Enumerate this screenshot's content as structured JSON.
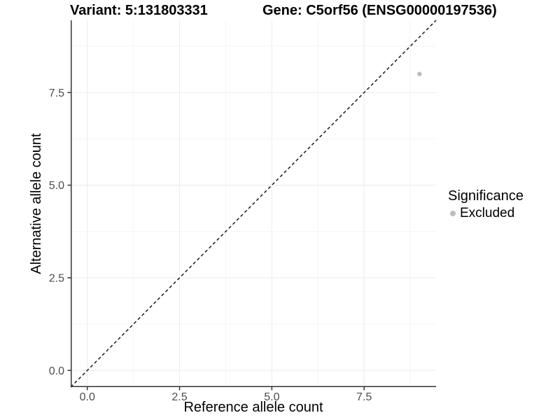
{
  "title": {
    "variant": "Variant: 5:131803331",
    "gene": "Gene: C5orf56 (ENSG00000197536)"
  },
  "axes": {
    "x_label": "Reference allele count",
    "y_label": "Alternative allele count"
  },
  "legend": {
    "title": "Significance",
    "items": [
      {
        "label": "Excluded",
        "color": "#BDBDBD"
      }
    ]
  },
  "colors": {
    "background": "#FFFFFF",
    "axis_line": "#333333",
    "tick_mark": "#333333",
    "tick_label": "#4D4D4D",
    "grid_major": "#EBEBEB",
    "grid_minor": "#F5F5F5",
    "identity_line": "#1A1A1A",
    "point": "#BDBDBD"
  },
  "chart_data": {
    "type": "scatter",
    "title": "Variant: 5:131803331    Gene: C5orf56 (ENSG00000197536)",
    "xlabel": "Reference allele count",
    "ylabel": "Alternative allele count",
    "xlim": [
      -0.45,
      9.45
    ],
    "ylim": [
      -0.45,
      9.45
    ],
    "x_ticks": [
      0.0,
      2.5,
      5.0,
      7.5
    ],
    "y_ticks": [
      0.0,
      2.5,
      5.0,
      7.5
    ],
    "x_tick_labels": [
      "0.0",
      "2.5",
      "5.0",
      "7.5"
    ],
    "y_tick_labels": [
      "0.0",
      "2.5",
      "5.0",
      "7.5"
    ],
    "minor_ticks": [
      1.25,
      3.75,
      6.25,
      8.75
    ],
    "grid": true,
    "legend_position": "right",
    "reference_line": {
      "type": "identity",
      "slope": 1,
      "intercept": 0,
      "style": "dashed",
      "color": "#1A1A1A"
    },
    "series": [
      {
        "name": "Excluded",
        "color": "#BDBDBD",
        "points": [
          {
            "x": 9,
            "y": 8
          }
        ]
      }
    ]
  }
}
